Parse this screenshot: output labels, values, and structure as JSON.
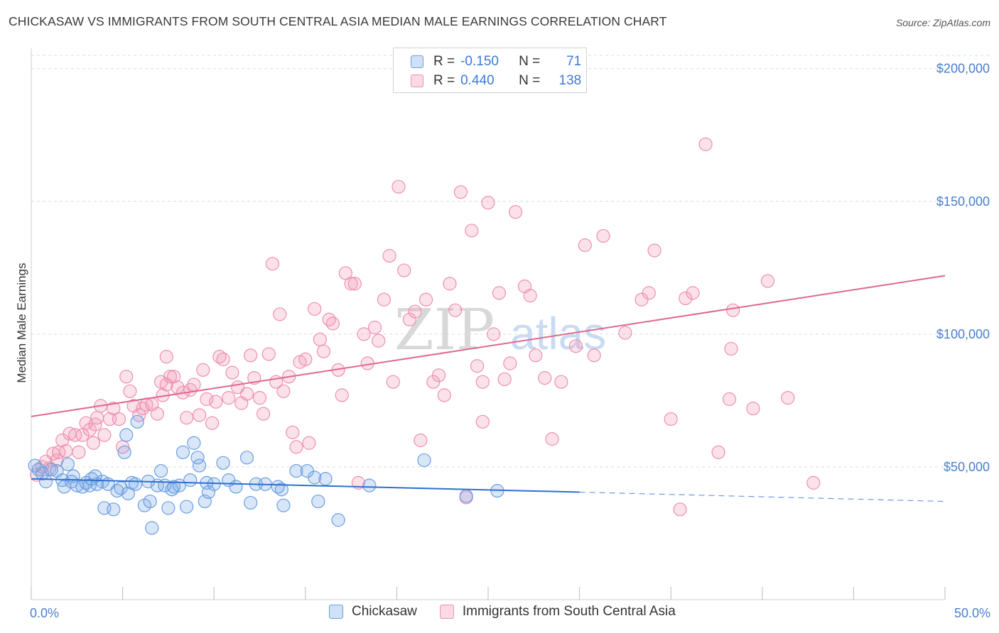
{
  "title": "CHICKASAW VS IMMIGRANTS FROM SOUTH CENTRAL ASIA MEDIAN MALE EARNINGS CORRELATION CHART",
  "source": "Source: ZipAtlas.com",
  "watermark": "ZIPatlas",
  "legend": {
    "r_label": "R =",
    "n_label": "N =",
    "rows": [
      {
        "r": "-0.150",
        "n": "71"
      },
      {
        "r": "0.440",
        "n": "138"
      }
    ]
  },
  "colors": {
    "blue": "#6a9ee0",
    "blue_fill": "rgba(120,165,230,0.28)",
    "blue_line": "#2e6fd1",
    "pink": "#ee8faf",
    "pink_fill": "rgba(240,150,180,0.28)",
    "pink_line": "#e0678f",
    "tick_text": "#4a7fcf"
  },
  "chart_data": {
    "type": "scatter",
    "xlabel": "",
    "ylabel": "Median Male Earnings",
    "xlim": [
      0,
      50
    ],
    "ylim": [
      0,
      205000
    ],
    "x_tick_labels": [
      "0.0%",
      "50.0%"
    ],
    "y_ticks": [
      50000,
      100000,
      150000,
      200000
    ],
    "y_tick_labels": [
      "$50,000",
      "$100,000",
      "$150,000",
      "$200,000"
    ],
    "grid": true,
    "legend_position": "top-center",
    "series": [
      {
        "name": "Chickasaw",
        "trend": {
          "x0": 0,
          "y0": 45500,
          "x1": 30,
          "y1": 40500,
          "dashed_to_x": 50,
          "dashed_to_y": 37000
        },
        "points": [
          [
            0.2,
            50500
          ],
          [
            0.4,
            49000
          ],
          [
            0.6,
            47500
          ],
          [
            0.8,
            44500
          ],
          [
            1.1,
            49000
          ],
          [
            1.4,
            48500
          ],
          [
            1.7,
            45000
          ],
          [
            1.8,
            42500
          ],
          [
            2.0,
            51000
          ],
          [
            2.2,
            44500
          ],
          [
            2.3,
            46500
          ],
          [
            2.5,
            43000
          ],
          [
            2.8,
            42500
          ],
          [
            3.0,
            44000
          ],
          [
            3.2,
            43000
          ],
          [
            3.5,
            46500
          ],
          [
            3.6,
            43500
          ],
          [
            3.9,
            44500
          ],
          [
            4.0,
            34500
          ],
          [
            4.2,
            43500
          ],
          [
            4.5,
            34000
          ],
          [
            4.7,
            41000
          ],
          [
            4.9,
            42000
          ],
          [
            5.1,
            55500
          ],
          [
            5.2,
            62000
          ],
          [
            5.3,
            40000
          ],
          [
            5.5,
            44000
          ],
          [
            5.7,
            43500
          ],
          [
            5.8,
            67000
          ],
          [
            6.2,
            35500
          ],
          [
            6.4,
            44500
          ],
          [
            6.5,
            37000
          ],
          [
            6.6,
            27000
          ],
          [
            6.9,
            43000
          ],
          [
            7.1,
            48500
          ],
          [
            7.3,
            43000
          ],
          [
            7.5,
            34500
          ],
          [
            7.7,
            41500
          ],
          [
            7.8,
            42500
          ],
          [
            8.1,
            43000
          ],
          [
            8.3,
            55500
          ],
          [
            8.5,
            35000
          ],
          [
            8.7,
            45000
          ],
          [
            8.9,
            59000
          ],
          [
            9.1,
            53500
          ],
          [
            9.2,
            50500
          ],
          [
            9.5,
            37000
          ],
          [
            9.6,
            44000
          ],
          [
            9.7,
            40500
          ],
          [
            10.0,
            43500
          ],
          [
            10.5,
            51500
          ],
          [
            10.8,
            45000
          ],
          [
            11.2,
            42500
          ],
          [
            11.8,
            53500
          ],
          [
            12.0,
            36500
          ],
          [
            12.3,
            43500
          ],
          [
            12.8,
            43500
          ],
          [
            13.5,
            42500
          ],
          [
            13.7,
            41500
          ],
          [
            13.8,
            35500
          ],
          [
            14.5,
            48500
          ],
          [
            15.1,
            48500
          ],
          [
            15.5,
            46000
          ],
          [
            15.7,
            37000
          ],
          [
            16.1,
            45500
          ],
          [
            16.8,
            30000
          ],
          [
            18.5,
            43000
          ],
          [
            21.5,
            52500
          ],
          [
            23.8,
            39000
          ],
          [
            25.5,
            41000
          ],
          [
            3.3,
            45500
          ]
        ]
      },
      {
        "name": "Immigrants from South Central Asia",
        "trend": {
          "x0": 0,
          "y0": 69000,
          "x1": 50,
          "y1": 122000
        },
        "points": [
          [
            0.3,
            47000
          ],
          [
            0.6,
            50000
          ],
          [
            0.8,
            52000
          ],
          [
            1.0,
            49500
          ],
          [
            1.2,
            55000
          ],
          [
            1.4,
            52500
          ],
          [
            1.5,
            55500
          ],
          [
            1.7,
            60000
          ],
          [
            1.9,
            56000
          ],
          [
            2.1,
            62500
          ],
          [
            2.4,
            62000
          ],
          [
            2.6,
            55500
          ],
          [
            2.8,
            62000
          ],
          [
            3.0,
            66500
          ],
          [
            3.2,
            64000
          ],
          [
            3.4,
            59000
          ],
          [
            3.6,
            68500
          ],
          [
            3.8,
            73000
          ],
          [
            4.0,
            62000
          ],
          [
            4.3,
            68000
          ],
          [
            4.5,
            72000
          ],
          [
            4.8,
            68000
          ],
          [
            5.0,
            57500
          ],
          [
            5.2,
            84000
          ],
          [
            5.4,
            78500
          ],
          [
            5.6,
            73000
          ],
          [
            5.9,
            69500
          ],
          [
            6.1,
            72000
          ],
          [
            6.3,
            73500
          ],
          [
            6.6,
            73500
          ],
          [
            6.9,
            70000
          ],
          [
            7.1,
            82000
          ],
          [
            7.2,
            77000
          ],
          [
            7.4,
            91500
          ],
          [
            7.6,
            84000
          ],
          [
            7.8,
            84000
          ],
          [
            8.0,
            80000
          ],
          [
            8.3,
            78000
          ],
          [
            8.5,
            68500
          ],
          [
            8.7,
            79000
          ],
          [
            8.9,
            81000
          ],
          [
            9.2,
            69500
          ],
          [
            9.4,
            86500
          ],
          [
            9.6,
            75500
          ],
          [
            9.9,
            66500
          ],
          [
            10.1,
            74500
          ],
          [
            10.3,
            91500
          ],
          [
            10.5,
            90500
          ],
          [
            10.8,
            76000
          ],
          [
            11.0,
            85500
          ],
          [
            11.3,
            80000
          ],
          [
            11.5,
            74000
          ],
          [
            11.8,
            77500
          ],
          [
            12.0,
            92000
          ],
          [
            12.2,
            83500
          ],
          [
            12.5,
            76000
          ],
          [
            12.7,
            70000
          ],
          [
            13.0,
            92500
          ],
          [
            13.2,
            126500
          ],
          [
            13.4,
            82000
          ],
          [
            13.6,
            107500
          ],
          [
            13.8,
            78500
          ],
          [
            14.1,
            84000
          ],
          [
            14.3,
            63000
          ],
          [
            14.5,
            57500
          ],
          [
            14.7,
            89500
          ],
          [
            15.0,
            90500
          ],
          [
            15.2,
            59000
          ],
          [
            15.5,
            109500
          ],
          [
            15.8,
            98000
          ],
          [
            16.0,
            93500
          ],
          [
            16.3,
            105500
          ],
          [
            16.5,
            104000
          ],
          [
            16.8,
            86500
          ],
          [
            17.0,
            77000
          ],
          [
            17.2,
            123000
          ],
          [
            17.5,
            119000
          ],
          [
            17.7,
            119000
          ],
          [
            17.9,
            44000
          ],
          [
            18.2,
            100000
          ],
          [
            18.4,
            89000
          ],
          [
            18.8,
            102500
          ],
          [
            19.0,
            97500
          ],
          [
            19.3,
            113000
          ],
          [
            19.6,
            129500
          ],
          [
            19.8,
            82000
          ],
          [
            20.1,
            155500
          ],
          [
            20.4,
            124000
          ],
          [
            20.7,
            105500
          ],
          [
            21.0,
            108500
          ],
          [
            21.3,
            60000
          ],
          [
            21.6,
            113000
          ],
          [
            22.0,
            82000
          ],
          [
            22.3,
            84500
          ],
          [
            22.6,
            77000
          ],
          [
            22.9,
            119000
          ],
          [
            23.2,
            109000
          ],
          [
            23.5,
            153500
          ],
          [
            23.8,
            38500
          ],
          [
            24.1,
            139000
          ],
          [
            24.4,
            88000
          ],
          [
            24.7,
            67000
          ],
          [
            25.0,
            149500
          ],
          [
            25.3,
            100000
          ],
          [
            25.6,
            115500
          ],
          [
            25.9,
            83000
          ],
          [
            26.2,
            89000
          ],
          [
            26.5,
            146000
          ],
          [
            27.0,
            118000
          ],
          [
            27.3,
            114500
          ],
          [
            27.6,
            92000
          ],
          [
            28.1,
            83500
          ],
          [
            28.5,
            60500
          ],
          [
            29.0,
            82000
          ],
          [
            29.8,
            95500
          ],
          [
            30.3,
            133500
          ],
          [
            30.8,
            92000
          ],
          [
            31.3,
            137000
          ],
          [
            32.5,
            100500
          ],
          [
            33.4,
            113000
          ],
          [
            33.8,
            115500
          ],
          [
            34.1,
            131500
          ],
          [
            35.0,
            68000
          ],
          [
            35.5,
            34000
          ],
          [
            35.8,
            113500
          ],
          [
            36.2,
            115500
          ],
          [
            36.9,
            171500
          ],
          [
            37.6,
            55500
          ],
          [
            38.2,
            75500
          ],
          [
            38.3,
            94500
          ],
          [
            38.4,
            109000
          ],
          [
            39.5,
            72000
          ],
          [
            40.3,
            120000
          ],
          [
            41.4,
            76000
          ],
          [
            42.8,
            44000
          ],
          [
            7.4,
            81000
          ],
          [
            3.5,
            66000
          ],
          [
            24.7,
            82000
          ]
        ]
      }
    ]
  }
}
